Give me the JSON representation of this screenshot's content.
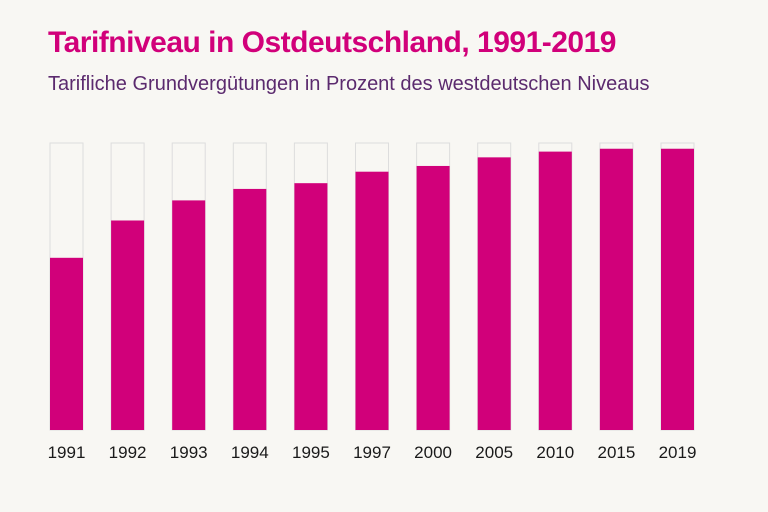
{
  "header": {
    "title": "Tarifniveau in Ostdeutschland, 1991-2019",
    "subtitle": "Tarifliche Grundvergütungen in Prozent des westdeutschen Niveaus"
  },
  "colors": {
    "accent": "#d1007a",
    "subtitle": "#5b2a6e",
    "background": "#f8f7f3",
    "bar_outline": "#dddddd"
  },
  "chart_data": {
    "type": "bar",
    "title": "Tarifniveau in Ostdeutschland, 1991-2019",
    "subtitle": "Tarifliche Grundvergütungen in Prozent des westdeutschen Niveaus",
    "categories": [
      "1991",
      "1992",
      "1993",
      "1994",
      "1995",
      "1997",
      "2000",
      "2005",
      "2010",
      "2015",
      "2019"
    ],
    "values": [
      60,
      73,
      80,
      84,
      86,
      90,
      92,
      95,
      97,
      98,
      98
    ],
    "ylim": [
      0,
      100
    ],
    "xlabel": "",
    "ylabel": "",
    "grid": false,
    "legend": "none"
  }
}
